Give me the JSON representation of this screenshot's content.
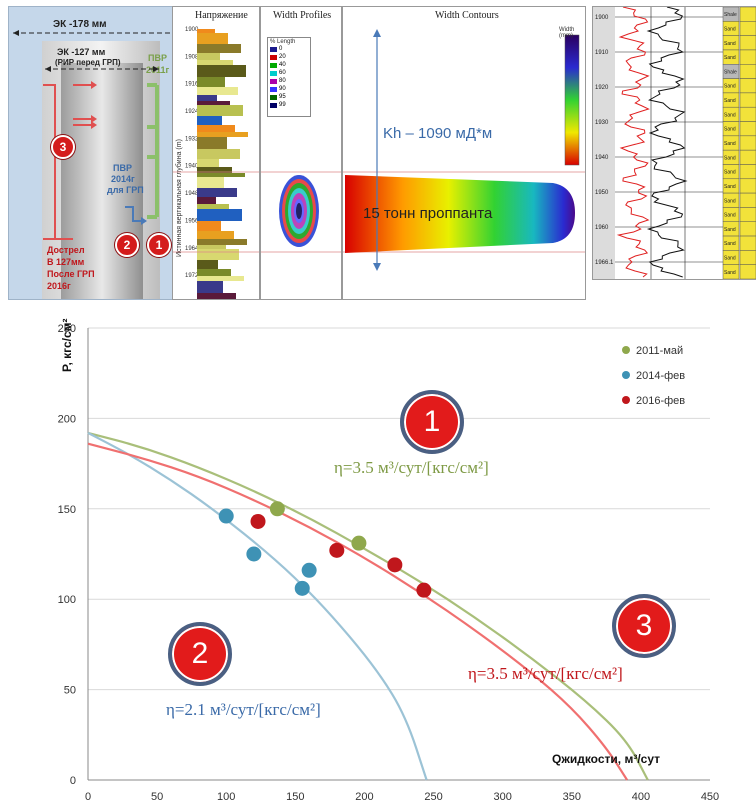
{
  "schematic": {
    "ek178": "ЭК -178 мм",
    "ek127": "ЭК -127 мм",
    "rir": "(РИР перед ГРП)",
    "pvr2011_a": "ПВР",
    "pvr2011_b": "2011г",
    "pvr2014_a": "ПВР",
    "pvr2014_b": "2014г",
    "pvr2014_c": "для ГРП",
    "dostrel_1": "Дострел",
    "dostrel_2": "В 127мм",
    "dostrel_3": "После ГРП",
    "dostrel_4": "2016г",
    "badge3": "3",
    "badge2": "2",
    "badge1": "1"
  },
  "logs": {
    "stress_title": "Напряжение",
    "width_profiles_title": "Width Profiles",
    "width_contours_title": "Width Contours",
    "vertical_axis_label": "Истинная вертикальная глубина (m)",
    "depth_ticks": [
      "1900",
      "1908",
      "1916",
      "1924",
      "1932",
      "1940",
      "1948",
      "1956",
      "1964",
      "1972"
    ],
    "legend_title": "% Length",
    "legend_items": [
      "0",
      "20",
      "40",
      "60",
      "80",
      "90",
      "95",
      "99"
    ],
    "legend_colors": [
      "#1a1a8c",
      "#cc0000",
      "#00aa00",
      "#00cccc",
      "#aa00aa",
      "#3333ff",
      "#006600",
      "#000066"
    ],
    "contour_scale_title": "Width (mm)",
    "kh_label": "Kh – 1090 мД*м",
    "proppant_label": "15 тонн проппанта",
    "well_depths": [
      "1900",
      "1910",
      "1920",
      "1930",
      "1940",
      "1950",
      "1960",
      "1966.1"
    ],
    "litho": [
      "Shale",
      "Sand",
      "Sand",
      "Sand",
      "Shale",
      "Sand",
      "Sand",
      "Sand",
      "Sand",
      "Sand",
      "Sand",
      "Sand",
      "Sand",
      "Sand",
      "Sand",
      "Sand",
      "Sand",
      "Sand",
      "Sand"
    ]
  },
  "chart_data": {
    "type": "scatter",
    "title": "",
    "xlabel": "Qжидкости, м³/сут",
    "ylabel": "P, кгс/см²",
    "xlim": [
      0,
      450
    ],
    "ylim": [
      0,
      250
    ],
    "xticks": [
      0,
      50,
      100,
      150,
      200,
      250,
      300,
      350,
      400,
      450
    ],
    "yticks": [
      0,
      50,
      100,
      150,
      200,
      250
    ],
    "grid": "horizontal",
    "legend_position": "top-right",
    "series": [
      {
        "name": "2011-май",
        "color": "#8fa84c",
        "points": [
          [
            137,
            150
          ],
          [
            196,
            131
          ]
        ],
        "curve": [
          [
            0,
            192
          ],
          [
            40,
            184
          ],
          [
            80,
            173
          ],
          [
            120,
            160
          ],
          [
            160,
            145
          ],
          [
            200,
            128
          ],
          [
            240,
            110
          ],
          [
            280,
            90
          ],
          [
            320,
            68
          ],
          [
            360,
            44
          ],
          [
            390,
            22
          ],
          [
            405,
            0
          ]
        ]
      },
      {
        "name": "2014-фев",
        "color": "#3e92b5",
        "points": [
          [
            100,
            146
          ],
          [
            120,
            125
          ],
          [
            160,
            116
          ],
          [
            155,
            106
          ]
        ],
        "curve": [
          [
            0,
            192
          ],
          [
            30,
            180
          ],
          [
            60,
            166
          ],
          [
            90,
            150
          ],
          [
            120,
            132
          ],
          [
            150,
            112
          ],
          [
            180,
            88
          ],
          [
            210,
            60
          ],
          [
            230,
            35
          ],
          [
            245,
            0
          ]
        ]
      },
      {
        "name": "2016-фев",
        "color": "#c0171c",
        "points": [
          [
            123,
            143
          ],
          [
            180,
            127
          ],
          [
            222,
            119
          ],
          [
            243,
            105
          ]
        ],
        "curve": [
          [
            0,
            186
          ],
          [
            40,
            178
          ],
          [
            80,
            168
          ],
          [
            120,
            155
          ],
          [
            160,
            140
          ],
          [
            200,
            123
          ],
          [
            240,
            104
          ],
          [
            280,
            83
          ],
          [
            320,
            60
          ],
          [
            350,
            40
          ],
          [
            375,
            18
          ],
          [
            390,
            0
          ]
        ]
      }
    ],
    "curve_colors": {
      "2011-май": "#a9bf7a",
      "2014-фев": "#9cc3d6",
      "2016-фев": "#f07070"
    },
    "annotations": {
      "eta1": "η=3.5 м³/сут/[кгс/см²]",
      "eta2": "η=2.1 м³/сут/[кгс/см²]",
      "eta3": "η=3.5 м³/сут/[кгс/см²]",
      "circle1": "1",
      "circle2": "2",
      "circle3": "3"
    }
  }
}
